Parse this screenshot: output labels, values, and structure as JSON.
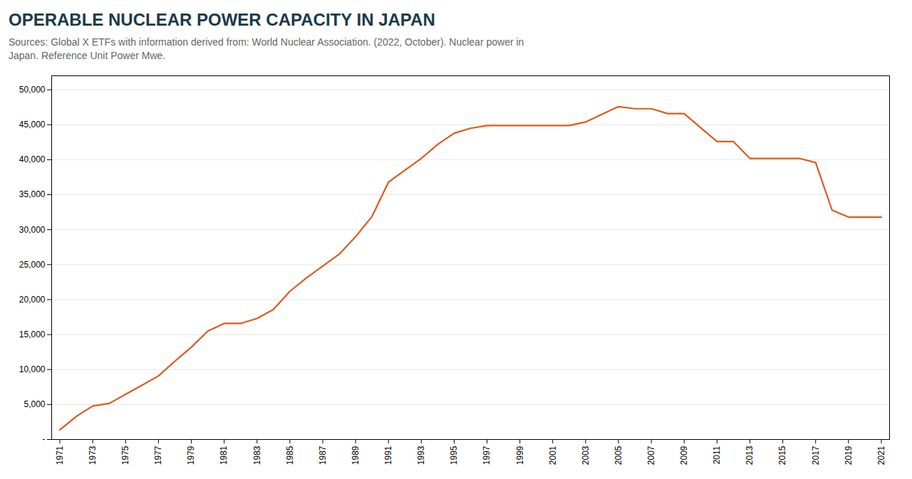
{
  "chart_data": {
    "type": "line",
    "title": "OPERABLE NUCLEAR POWER CAPACITY IN JAPAN",
    "subtitle": [
      "Sources: Global X ETFs with information derived from: World Nuclear Association. (2022, October). Nuclear power in",
      "Japan. Reference Unit Power Mwe."
    ],
    "x": [
      1971,
      1972,
      1973,
      1974,
      1975,
      1976,
      1977,
      1978,
      1979,
      1980,
      1981,
      1982,
      1983,
      1984,
      1985,
      1986,
      1987,
      1988,
      1989,
      1990,
      1991,
      1992,
      1993,
      1994,
      1995,
      1996,
      1997,
      1998,
      1999,
      2000,
      2001,
      2002,
      2003,
      2004,
      2005,
      2006,
      2007,
      2008,
      2009,
      2010,
      2011,
      2012,
      2013,
      2014,
      2015,
      2016,
      2017,
      2018,
      2019,
      2020,
      2021
    ],
    "values": [
      1380,
      3293,
      4793,
      5153,
      6453,
      7753,
      9093,
      11193,
      13193,
      15493,
      16593,
      16593,
      17293,
      18593,
      21193,
      23093,
      24793,
      26493,
      28993,
      31893,
      36793,
      38493,
      40193,
      42193,
      43793,
      44493,
      44893,
      44893,
      44893,
      44893,
      44893,
      44893,
      45393,
      46493,
      47593,
      47293,
      47293,
      46593,
      46593,
      44593,
      42593,
      42593,
      40193,
      40193,
      40193,
      40193,
      39593,
      32793,
      31793,
      31793,
      31793
    ],
    "color": "#e05a1e",
    "xlim": [
      1970.5,
      2021.5
    ],
    "xticks": [
      1971,
      1973,
      1975,
      1977,
      1979,
      1981,
      1983,
      1985,
      1987,
      1989,
      1991,
      1993,
      1995,
      1997,
      1999,
      2001,
      2003,
      2005,
      2007,
      2009,
      2011,
      2013,
      2015,
      2017,
      2019,
      2021
    ],
    "ylim": [
      0,
      52000
    ],
    "yticks": [
      {
        "value": 0,
        "label": "-"
      },
      {
        "value": 5000,
        "label": "5,000"
      },
      {
        "value": 10000,
        "label": "10,000"
      },
      {
        "value": 15000,
        "label": "15,000"
      },
      {
        "value": 20000,
        "label": "20,000"
      },
      {
        "value": 25000,
        "label": "25,000"
      },
      {
        "value": 30000,
        "label": "30,000"
      },
      {
        "value": 35000,
        "label": "35,000"
      },
      {
        "value": 40000,
        "label": "40,000"
      },
      {
        "value": 45000,
        "label": "45,000"
      },
      {
        "value": 50000,
        "label": "50,000"
      }
    ],
    "grid": true
  }
}
